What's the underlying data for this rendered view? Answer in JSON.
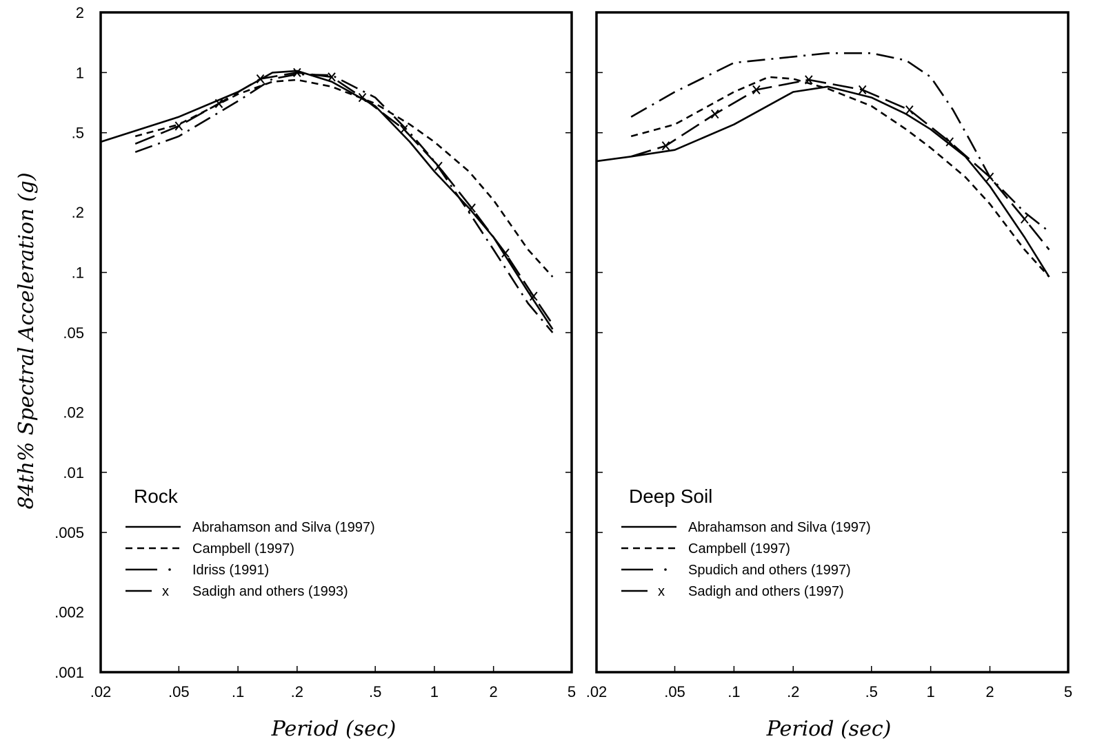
{
  "chart_data": [
    {
      "type": "line",
      "panel_label": "Rock",
      "xlabel": "Period (sec)",
      "ylabel": "84th% Spectral Acceleration (g)",
      "xscale": "log",
      "yscale": "log",
      "xlim": [
        0.02,
        5
      ],
      "ylim": [
        0.001,
        2
      ],
      "x_ticks": [
        ".02",
        ".05",
        ".1",
        ".2",
        ".5",
        "1",
        "2",
        "5"
      ],
      "y_ticks": [
        "2",
        "1",
        ".5",
        ".2",
        ".1",
        ".05",
        ".02",
        ".01",
        ".005",
        ".002",
        ".001"
      ],
      "legend_position": "bottom-left",
      "series": [
        {
          "name": "Abrahamson and Silva (1997)",
          "style": "solid",
          "x": [
            0.02,
            0.05,
            0.1,
            0.15,
            0.2,
            0.3,
            0.5,
            0.75,
            1,
            1.5,
            2,
            3,
            4
          ],
          "y": [
            0.45,
            0.6,
            0.8,
            1.0,
            1.02,
            0.9,
            0.68,
            0.45,
            0.32,
            0.21,
            0.15,
            0.08,
            0.052
          ]
        },
        {
          "name": "Campbell (1997)",
          "style": "dashed",
          "x": [
            0.03,
            0.05,
            0.1,
            0.15,
            0.2,
            0.3,
            0.5,
            0.75,
            1,
            1.5,
            2,
            3,
            4
          ],
          "y": [
            0.48,
            0.55,
            0.78,
            0.9,
            0.92,
            0.85,
            0.7,
            0.55,
            0.45,
            0.32,
            0.23,
            0.13,
            0.095
          ]
        },
        {
          "name": "Idriss (1991)",
          "style": "dash-dot",
          "x": [
            0.03,
            0.05,
            0.1,
            0.15,
            0.2,
            0.3,
            0.5,
            0.75,
            1,
            1.5,
            2,
            3,
            4
          ],
          "y": [
            0.4,
            0.48,
            0.72,
            0.93,
            0.98,
            0.97,
            0.75,
            0.5,
            0.36,
            0.2,
            0.13,
            0.07,
            0.05
          ]
        },
        {
          "name": "Sadigh and others (1993)",
          "style": "long-dash-x",
          "x": [
            0.03,
            0.05,
            0.08,
            0.13,
            0.2,
            0.3,
            0.43,
            0.7,
            1.05,
            1.55,
            2.3,
            3.2,
            4
          ],
          "y": [
            0.44,
            0.54,
            0.7,
            0.93,
            1.0,
            0.95,
            0.75,
            0.52,
            0.34,
            0.21,
            0.125,
            0.076,
            0.055
          ],
          "markers": "x"
        }
      ]
    },
    {
      "type": "line",
      "panel_label": "Deep Soil",
      "xlabel": "Period (sec)",
      "xscale": "log",
      "yscale": "log",
      "xlim": [
        0.02,
        5
      ],
      "ylim": [
        0.001,
        2
      ],
      "x_ticks": [
        ".02",
        ".05",
        ".1",
        ".2",
        ".5",
        "1",
        "2",
        "5"
      ],
      "legend_position": "bottom-left",
      "series": [
        {
          "name": "Abrahamson and Silva (1997)",
          "style": "solid",
          "x": [
            0.02,
            0.03,
            0.05,
            0.1,
            0.2,
            0.3,
            0.5,
            0.75,
            1,
            1.5,
            2,
            3,
            4
          ],
          "y": [
            0.36,
            0.38,
            0.41,
            0.55,
            0.8,
            0.85,
            0.75,
            0.62,
            0.52,
            0.38,
            0.27,
            0.15,
            0.095
          ]
        },
        {
          "name": "Campbell (1997)",
          "style": "dashed",
          "x": [
            0.03,
            0.05,
            0.1,
            0.15,
            0.2,
            0.3,
            0.5,
            0.75,
            1,
            1.5,
            2,
            3,
            4
          ],
          "y": [
            0.48,
            0.55,
            0.8,
            0.95,
            0.93,
            0.83,
            0.68,
            0.52,
            0.42,
            0.3,
            0.22,
            0.13,
            0.095
          ]
        },
        {
          "name": "Spudich and others (1997)",
          "style": "dash-dot",
          "x": [
            0.03,
            0.05,
            0.1,
            0.2,
            0.3,
            0.5,
            0.75,
            1,
            1.3,
            1.6,
            2,
            3,
            4
          ],
          "y": [
            0.6,
            0.8,
            1.12,
            1.2,
            1.25,
            1.25,
            1.15,
            0.95,
            0.65,
            0.45,
            0.3,
            0.2,
            0.16
          ]
        },
        {
          "name": "Sadigh and others (1997)",
          "style": "long-dash-x",
          "x": [
            0.03,
            0.045,
            0.08,
            0.13,
            0.24,
            0.45,
            0.78,
            1.25,
            2,
            3,
            4
          ],
          "y": [
            0.38,
            0.43,
            0.62,
            0.82,
            0.92,
            0.82,
            0.65,
            0.45,
            0.3,
            0.185,
            0.13
          ],
          "markers": "x"
        }
      ]
    }
  ]
}
